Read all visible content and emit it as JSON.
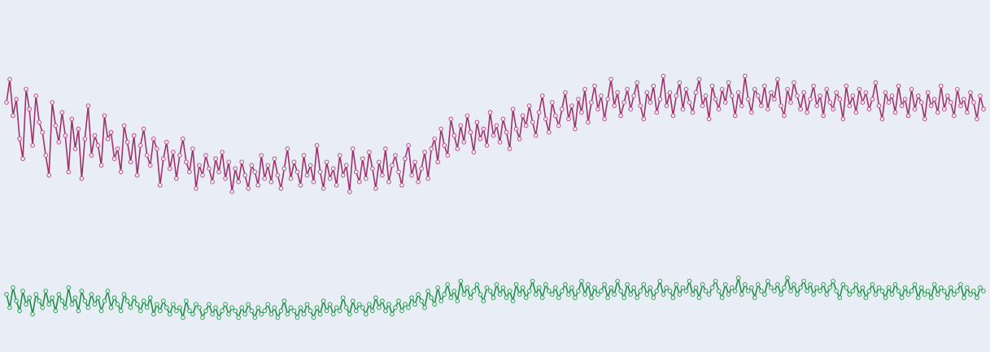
{
  "chart_data": {
    "type": "line",
    "title": "",
    "xlabel": "",
    "ylabel": "",
    "grid": false,
    "legend": "none",
    "axes_visible": false,
    "marker": "hollow-circle",
    "x": {
      "start": 0,
      "step": 1,
      "count": 300
    },
    "ylim": [
      0,
      100
    ],
    "series": [
      {
        "color": "#a0306e",
        "marker_color": "#c2578f",
        "values": [
          71,
          78,
          67,
          72,
          60,
          54,
          75,
          69,
          58,
          73,
          65,
          62,
          55,
          49,
          71,
          64,
          59,
          68,
          61,
          50,
          66,
          57,
          63,
          48,
          60,
          70,
          55,
          61,
          58,
          52,
          67,
          60,
          62,
          54,
          57,
          50,
          64,
          59,
          53,
          61,
          49,
          58,
          63,
          55,
          52,
          60,
          57,
          46,
          54,
          59,
          51,
          56,
          48,
          55,
          60,
          53,
          50,
          57,
          45,
          52,
          49,
          55,
          51,
          47,
          54,
          50,
          56,
          48,
          53,
          44,
          51,
          47,
          53,
          49,
          45,
          52,
          50,
          46,
          55,
          48,
          52,
          47,
          54,
          49,
          45,
          51,
          57,
          48,
          53,
          50,
          46,
          55,
          49,
          52,
          47,
          58,
          50,
          45,
          53,
          48,
          51,
          46,
          55,
          49,
          52,
          44,
          57,
          50,
          47,
          54,
          48,
          56,
          51,
          45,
          53,
          49,
          57,
          47,
          52,
          55,
          50,
          46,
          54,
          58,
          49,
          53,
          47,
          51,
          56,
          48,
          57,
          60,
          53,
          63,
          58,
          55,
          66,
          61,
          57,
          64,
          59,
          67,
          62,
          56,
          65,
          60,
          63,
          58,
          68,
          61,
          64,
          59,
          66,
          62,
          57,
          69,
          63,
          60,
          67,
          64,
          70,
          65,
          61,
          68,
          73,
          66,
          62,
          71,
          67,
          64,
          69,
          74,
          66,
          70,
          63,
          72,
          68,
          75,
          65,
          71,
          76,
          69,
          73,
          66,
          72,
          78,
          70,
          74,
          67,
          71,
          75,
          69,
          73,
          77,
          70,
          66,
          74,
          71,
          76,
          68,
          72,
          79,
          70,
          74,
          67,
          73,
          77,
          69,
          75,
          71,
          68,
          74,
          78,
          70,
          73,
          66,
          76,
          72,
          69,
          75,
          71,
          77,
          73,
          67,
          74,
          70,
          79,
          72,
          68,
          75,
          73,
          70,
          76,
          69,
          74,
          72,
          78,
          70,
          67,
          75,
          71,
          77,
          73,
          69,
          74,
          68,
          72,
          76,
          70,
          73,
          67,
          75,
          71,
          69,
          74,
          72,
          66,
          76,
          70,
          73,
          68,
          75,
          71,
          74,
          69,
          72,
          77,
          70,
          66,
          74,
          71,
          73,
          68,
          76,
          70,
          72,
          67,
          75,
          69,
          73,
          71,
          66,
          74,
          70,
          72,
          68,
          76,
          69,
          73,
          71,
          67,
          75,
          70,
          72,
          68,
          74,
          71,
          66,
          73,
          69
        ]
      },
      {
        "color": "#1f8a4c",
        "marker_color": "#3aa55f",
        "values": [
          13,
          9,
          15,
          11,
          8,
          14,
          10,
          12,
          7,
          13,
          11,
          9,
          14,
          10,
          12,
          8,
          13,
          11,
          9,
          15,
          10,
          12,
          8,
          14,
          11,
          9,
          13,
          10,
          12,
          8,
          11,
          14,
          9,
          12,
          10,
          8,
          13,
          11,
          9,
          12,
          10,
          8,
          11,
          9,
          12,
          7,
          10,
          8,
          11,
          9,
          7,
          10,
          8,
          9,
          6,
          11,
          8,
          7,
          10,
          9,
          6,
          8,
          10,
          7,
          9,
          6,
          8,
          10,
          7,
          9,
          8,
          6,
          9,
          7,
          10,
          8,
          6,
          9,
          7,
          8,
          10,
          7,
          9,
          6,
          8,
          11,
          7,
          9,
          8,
          6,
          9,
          7,
          10,
          8,
          6,
          9,
          7,
          11,
          8,
          10,
          7,
          9,
          8,
          12,
          9,
          7,
          11,
          8,
          10,
          9,
          7,
          10,
          8,
          12,
          9,
          11,
          8,
          10,
          7,
          9,
          11,
          8,
          10,
          9,
          12,
          10,
          13,
          11,
          9,
          14,
          12,
          10,
          15,
          11,
          13,
          16,
          12,
          14,
          11,
          17,
          13,
          15,
          12,
          14,
          16,
          13,
          11,
          15,
          14,
          12,
          16,
          13,
          15,
          12,
          14,
          11,
          16,
          13,
          15,
          12,
          14,
          17,
          13,
          15,
          12,
          16,
          14,
          13,
          15,
          12,
          14,
          16,
          13,
          15,
          12,
          14,
          17,
          13,
          16,
          12,
          15,
          13,
          14,
          16,
          12,
          15,
          13,
          17,
          14,
          12,
          16,
          13,
          15,
          12,
          14,
          16,
          13,
          15,
          12,
          14,
          17,
          13,
          15,
          14,
          12,
          16,
          13,
          15,
          14,
          17,
          13,
          15,
          12,
          16,
          14,
          13,
          15,
          17,
          14,
          12,
          16,
          13,
          15,
          14,
          18,
          13,
          16,
          14,
          15,
          12,
          16,
          14,
          13,
          17,
          15,
          14,
          16,
          13,
          15,
          18,
          14,
          16,
          13,
          15,
          17,
          14,
          16,
          13,
          15,
          14,
          16,
          13,
          15,
          17,
          14,
          12,
          16,
          15,
          13,
          14,
          16,
          13,
          15,
          12,
          14,
          16,
          13,
          15,
          14,
          12,
          15,
          13,
          16,
          14,
          12,
          15,
          13,
          14,
          16,
          12,
          15,
          13,
          14,
          12,
          16,
          13,
          15,
          14,
          12,
          15,
          13,
          14,
          16,
          12,
          15,
          13,
          14,
          12,
          15,
          14
        ]
      }
    ]
  }
}
